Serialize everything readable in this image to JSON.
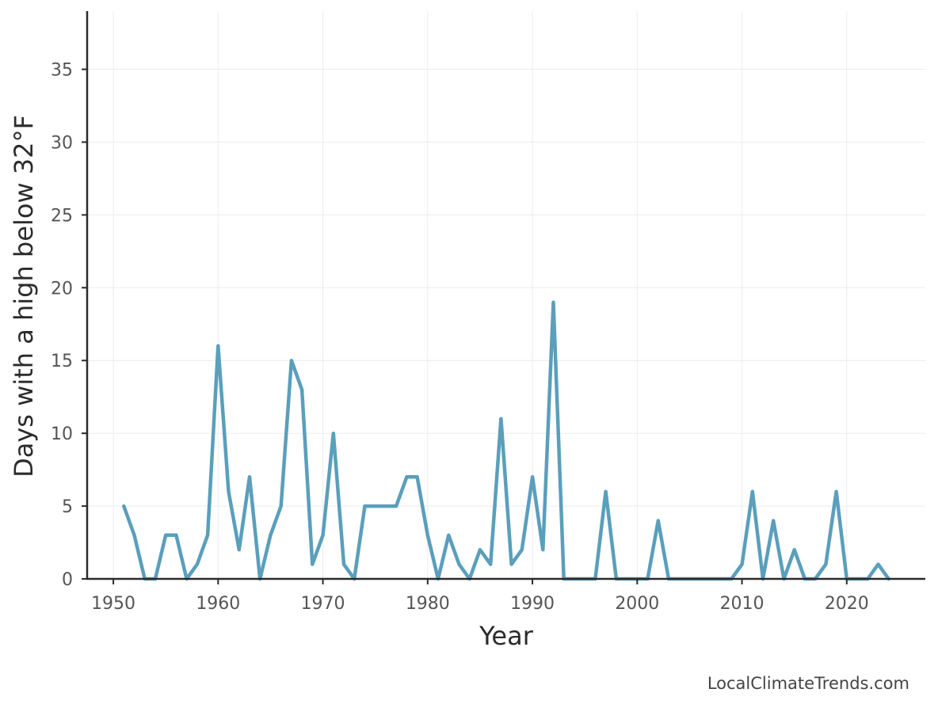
{
  "chart_data": {
    "type": "line",
    "title": "",
    "xlabel": "Year",
    "ylabel": "Days with a high below 32°F",
    "xlim": [
      1947.5,
      2027.5
    ],
    "ylim": [
      0,
      39
    ],
    "xticks": [
      1950,
      1960,
      1970,
      1980,
      1990,
      2000,
      2010,
      2020
    ],
    "yticks": [
      0,
      5,
      10,
      15,
      20,
      25,
      30,
      35
    ],
    "grid": true,
    "line_color": "#5a9fbc",
    "x": [
      1951,
      1952,
      1953,
      1954,
      1955,
      1956,
      1957,
      1958,
      1959,
      1960,
      1961,
      1962,
      1963,
      1964,
      1965,
      1966,
      1967,
      1968,
      1969,
      1970,
      1971,
      1972,
      1973,
      1974,
      1975,
      1976,
      1977,
      1978,
      1979,
      1980,
      1981,
      1982,
      1983,
      1984,
      1985,
      1986,
      1987,
      1988,
      1989,
      1990,
      1991,
      1992,
      1993,
      1994,
      1995,
      1996,
      1997,
      1998,
      1999,
      2000,
      2001,
      2002,
      2003,
      2004,
      2005,
      2006,
      2007,
      2008,
      2009,
      2010,
      2011,
      2012,
      2013,
      2014,
      2015,
      2016,
      2017,
      2018,
      2019,
      2020,
      2021,
      2022,
      2023,
      2024
    ],
    "y": [
      5,
      3,
      0,
      0,
      3,
      3,
      0,
      1,
      3,
      16,
      6,
      2,
      7,
      0,
      3,
      5,
      15,
      13,
      1,
      3,
      10,
      1,
      0,
      5,
      5,
      5,
      5,
      7,
      7,
      3,
      0,
      3,
      1,
      0,
      2,
      1,
      11,
      1,
      2,
      7,
      2,
      19,
      0,
      0,
      0,
      0,
      6,
      0,
      0,
      0,
      0,
      4,
      0,
      0,
      0,
      0,
      0,
      0,
      0,
      1,
      6,
      0,
      4,
      0,
      2,
      0,
      0,
      1,
      6,
      0,
      0,
      0,
      1,
      0
    ]
  },
  "credit": "LocalClimateTrends.com"
}
